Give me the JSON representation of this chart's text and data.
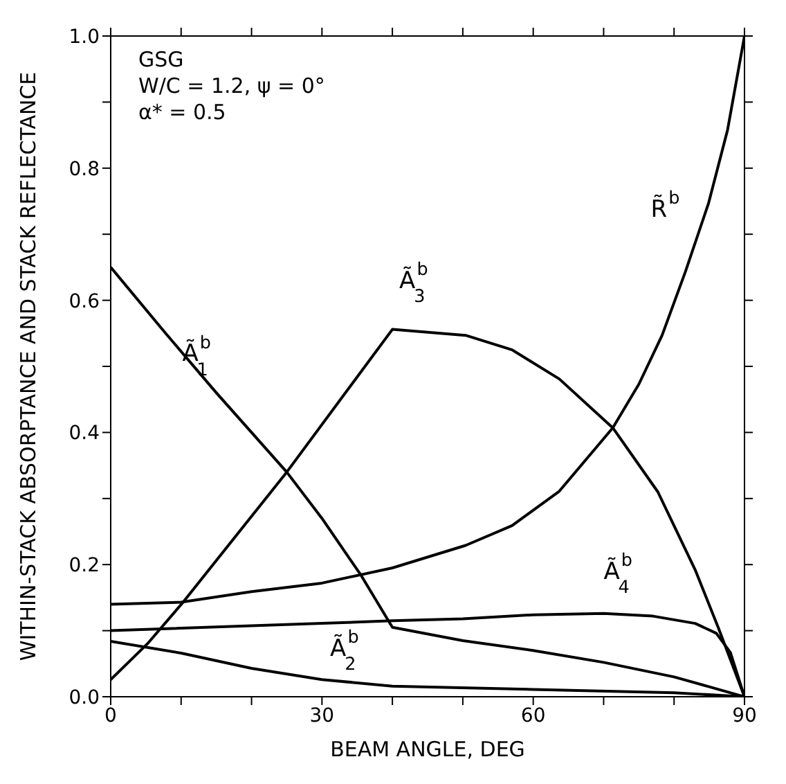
{
  "chart_data": {
    "type": "line",
    "xlabel": "BEAM ANGLE, DEG",
    "ylabel": "WITHIN-STACK ABSORPTANCE AND STACK REFLECTANCE",
    "annotations": [
      "GSG",
      "W/C = 1.2, ψ = 0°",
      "α* = 0.5"
    ],
    "xlim": [
      0,
      90
    ],
    "ylim": [
      0,
      1
    ],
    "xticks": [
      0,
      {
        "value": 10,
        "label": null
      },
      {
        "value": 20,
        "label": null
      },
      30,
      {
        "value": 40,
        "label": null
      },
      {
        "value": 50,
        "label": null
      },
      60,
      {
        "value": 70,
        "label": null
      },
      {
        "value": 80,
        "label": null
      },
      90
    ],
    "yticks": [
      {
        "value": 0,
        "label": "0.0"
      },
      {
        "value": 0.1,
        "label": null
      },
      {
        "value": 0.2,
        "label": "0.2"
      },
      {
        "value": 0.3,
        "label": null
      },
      {
        "value": 0.4,
        "label": "0.4"
      },
      {
        "value": 0.5,
        "label": null
      },
      {
        "value": 0.6,
        "label": "0.6"
      },
      {
        "value": 0.7,
        "label": null
      },
      {
        "value": 0.8,
        "label": "0.8"
      },
      {
        "value": 0.9,
        "label": null
      },
      {
        "value": 1,
        "label": "1.0"
      }
    ],
    "marker": "none",
    "line_style": "solid",
    "series": [
      {
        "name": "Ã$^{b}$$_{1}$",
        "color": "#000000",
        "x": [
          0,
          7.8,
          15,
          25,
          30,
          35.6,
          40,
          50,
          60,
          70,
          80,
          85,
          90
        ],
        "values": [
          0.65,
          0.55,
          0.46,
          0.34,
          0.27,
          0.183,
          0.105,
          0.085,
          0.07,
          0.052,
          0.03,
          0.015,
          0
        ]
      },
      {
        "name": "Ã$^{b}$$_{2}$",
        "color": "#000000",
        "x": [
          0,
          10,
          20,
          30,
          40,
          60,
          80,
          90
        ],
        "values": [
          0.084,
          0.066,
          0.043,
          0.026,
          0.016,
          0.011,
          0.006,
          0
        ]
      },
      {
        "name": "Ã$^{b}$$_{3}$",
        "color": "#000000",
        "x": [
          0,
          5.2,
          10.2,
          25,
          40,
          50.4,
          57,
          63.7,
          71.3,
          77.7,
          83,
          86.3,
          90
        ],
        "values": [
          0.026,
          0.08,
          0.142,
          0.34,
          0.556,
          0.547,
          0.525,
          0.481,
          0.407,
          0.31,
          0.192,
          0.104,
          0
        ]
      },
      {
        "name": "Ã$^{b}$$_{4}$",
        "color": "#000000",
        "x": [
          0,
          30,
          40,
          50,
          60,
          70,
          77,
          83,
          86,
          88,
          90
        ],
        "values": [
          0.1,
          0.111,
          0.115,
          0.118,
          0.124,
          0.126,
          0.122,
          0.111,
          0.096,
          0.067,
          0
        ]
      },
      {
        "name": "R̃$^{b}$",
        "color": "#000000",
        "x": [
          0,
          10,
          20,
          30,
          40,
          50.4,
          57,
          63.7,
          71.3,
          75,
          78.3,
          81.6,
          84.9,
          87.6,
          90
        ],
        "values": [
          0.14,
          0.143,
          0.159,
          0.172,
          0.195,
          0.229,
          0.259,
          0.311,
          0.407,
          0.473,
          0.547,
          0.643,
          0.747,
          0.858,
          1
        ]
      }
    ]
  }
}
